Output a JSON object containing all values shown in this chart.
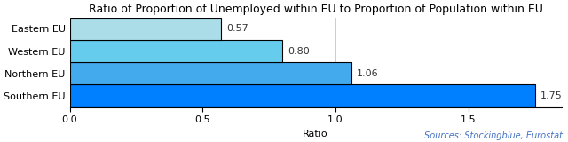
{
  "title": "Ratio of Proportion of Unemployed within EU to Proportion of Population within EU",
  "categories": [
    "Southern EU",
    "Northern EU",
    "Western EU",
    "Eastern EU"
  ],
  "values": [
    1.75,
    1.06,
    0.8,
    0.57
  ],
  "bar_colors": [
    "#0080ff",
    "#44aaee",
    "#66ccee",
    "#aadde8"
  ],
  "xlabel": "Ratio",
  "xlim": [
    0,
    1.85
  ],
  "xticks": [
    0.0,
    0.5,
    1.0,
    1.5
  ],
  "xtick_labels": [
    "0.0",
    "0.5",
    "1.0",
    "1.5"
  ],
  "annotation_color": "#333333",
  "source_text": "Sources: Stockingblue, Eurostat",
  "source_color": "#4472c4",
  "bg_color": "#ffffff",
  "grid_color": "#cccccc",
  "title_fontsize": 9,
  "label_fontsize": 8,
  "annotation_fontsize": 8,
  "source_fontsize": 7,
  "bar_height": 1.0,
  "edgecolor": "#000000",
  "edgewidth": 0.8
}
